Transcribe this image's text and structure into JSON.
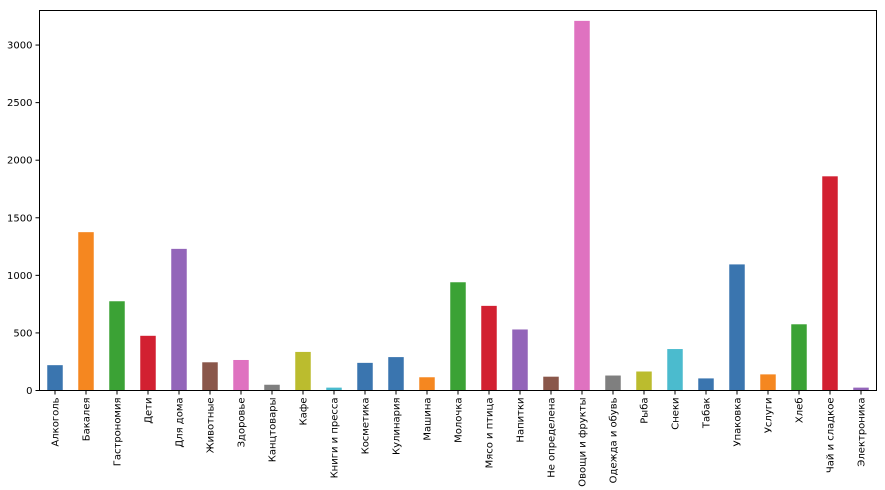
{
  "chart_data": {
    "type": "bar",
    "title": "",
    "xlabel": "",
    "ylabel": "",
    "ylim": [
      0,
      3300
    ],
    "yticks": [
      0,
      500,
      1000,
      1500,
      2000,
      2500,
      3000
    ],
    "grid": false,
    "legend": "none",
    "categories": [
      "Алкоголь",
      "Бакалея",
      "Гастрономия",
      "Дети",
      "Для дома",
      "Животные",
      "Здоровье",
      "Канцтовары",
      "Кафе",
      "Книги и пресса",
      "Косметика",
      "Кулинария",
      "Машина",
      "Молочка",
      "Мясо и птица",
      "Напитки",
      "Не определена",
      "Овощи и фрукты",
      "Одежда и обувь",
      "Рыба",
      "Снеки",
      "Табак",
      "Упаковка",
      "Услуги",
      "Хлеб",
      "Чай и сладкое",
      "Электроника"
    ],
    "values": [
      220,
      1375,
      775,
      475,
      1230,
      245,
      265,
      50,
      335,
      25,
      240,
      290,
      115,
      940,
      735,
      530,
      120,
      3210,
      130,
      165,
      360,
      105,
      1095,
      140,
      575,
      1860,
      25
    ],
    "colors": [
      "#3a75af",
      "#f58720",
      "#3ba235",
      "#d22031",
      "#9365b9",
      "#8a574a",
      "#df72c0",
      "#7f7f7f",
      "#bbbc2e",
      "#4bbbce",
      "#3a75af",
      "#3a75af",
      "#f58720",
      "#3ba235",
      "#d22031",
      "#9365b9",
      "#8a574a",
      "#df72c0",
      "#7f7f7f",
      "#bbbc2e",
      "#4bbbce",
      "#3a75af",
      "#3a75af",
      "#f58720",
      "#3ba235",
      "#d22031",
      "#9365b9"
    ]
  }
}
